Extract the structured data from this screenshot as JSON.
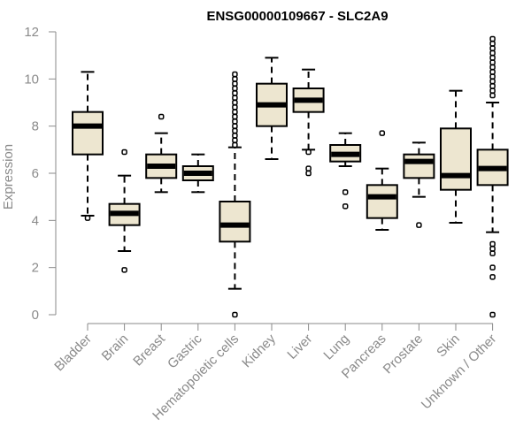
{
  "chart_data": {
    "type": "boxplot",
    "title": "ENSG00000109667 - SLC2A9",
    "xlabel": "",
    "ylabel": "Expression",
    "ylim": [
      0,
      12
    ],
    "yticks": [
      0,
      2,
      4,
      6,
      8,
      10,
      12
    ],
    "box_fill": "#ede6d0",
    "categories": [
      "Bladder",
      "Brain",
      "Breast",
      "Gastric",
      "Hematopoietic cells",
      "Kidney",
      "Liver",
      "Lung",
      "Pancreas",
      "Prostate",
      "Skin",
      "Unknown / Other"
    ],
    "boxes": [
      {
        "name": "Bladder",
        "min": 4.2,
        "q1": 6.8,
        "median": 8.0,
        "q3": 8.6,
        "max": 10.3,
        "outliers": [
          4.1
        ]
      },
      {
        "name": "Brain",
        "min": 2.7,
        "q1": 3.8,
        "median": 4.3,
        "q3": 4.7,
        "max": 5.9,
        "outliers": [
          6.9,
          1.9
        ]
      },
      {
        "name": "Breast",
        "min": 5.2,
        "q1": 5.8,
        "median": 6.3,
        "q3": 6.8,
        "max": 7.7,
        "outliers": [
          8.4
        ]
      },
      {
        "name": "Gastric",
        "min": 5.2,
        "q1": 5.7,
        "median": 6.0,
        "q3": 6.3,
        "max": 6.8,
        "outliers": []
      },
      {
        "name": "Hematopoietic cells",
        "min": 1.1,
        "q1": 3.1,
        "median": 3.8,
        "q3": 4.8,
        "max": 7.1,
        "outliers": [
          0.0,
          7.2,
          7.4,
          7.6,
          7.8,
          8.0,
          8.2,
          8.4,
          8.6,
          8.8,
          9.0,
          9.2,
          9.4,
          9.6,
          9.8,
          10.0,
          10.2
        ]
      },
      {
        "name": "Kidney",
        "min": 6.6,
        "q1": 8.0,
        "median": 8.9,
        "q3": 9.8,
        "max": 10.9,
        "outliers": []
      },
      {
        "name": "Liver",
        "min": 7.0,
        "q1": 8.6,
        "median": 9.1,
        "q3": 9.6,
        "max": 10.4,
        "outliers": [
          6.0,
          6.2,
          6.9
        ]
      },
      {
        "name": "Lung",
        "min": 6.3,
        "q1": 6.5,
        "median": 6.8,
        "q3": 7.2,
        "max": 7.7,
        "outliers": [
          5.2,
          4.6
        ]
      },
      {
        "name": "Pancreas",
        "min": 3.6,
        "q1": 4.1,
        "median": 5.0,
        "q3": 5.5,
        "max": 6.2,
        "outliers": [
          7.7
        ]
      },
      {
        "name": "Prostate",
        "min": 5.0,
        "q1": 5.8,
        "median": 6.5,
        "q3": 6.8,
        "max": 7.3,
        "outliers": [
          3.8
        ]
      },
      {
        "name": "Skin",
        "min": 3.9,
        "q1": 5.3,
        "median": 5.9,
        "q3": 7.9,
        "max": 9.5,
        "outliers": []
      },
      {
        "name": "Unknown / Other",
        "min": 3.5,
        "q1": 5.5,
        "median": 6.2,
        "q3": 7.0,
        "max": 9.0,
        "outliers": [
          0.0,
          1.6,
          2.0,
          2.6,
          2.8,
          3.0,
          9.3,
          9.5,
          9.7,
          9.9,
          10.1,
          10.3,
          10.5,
          10.7,
          10.9,
          11.1,
          11.3,
          11.5,
          11.7
        ]
      }
    ]
  }
}
